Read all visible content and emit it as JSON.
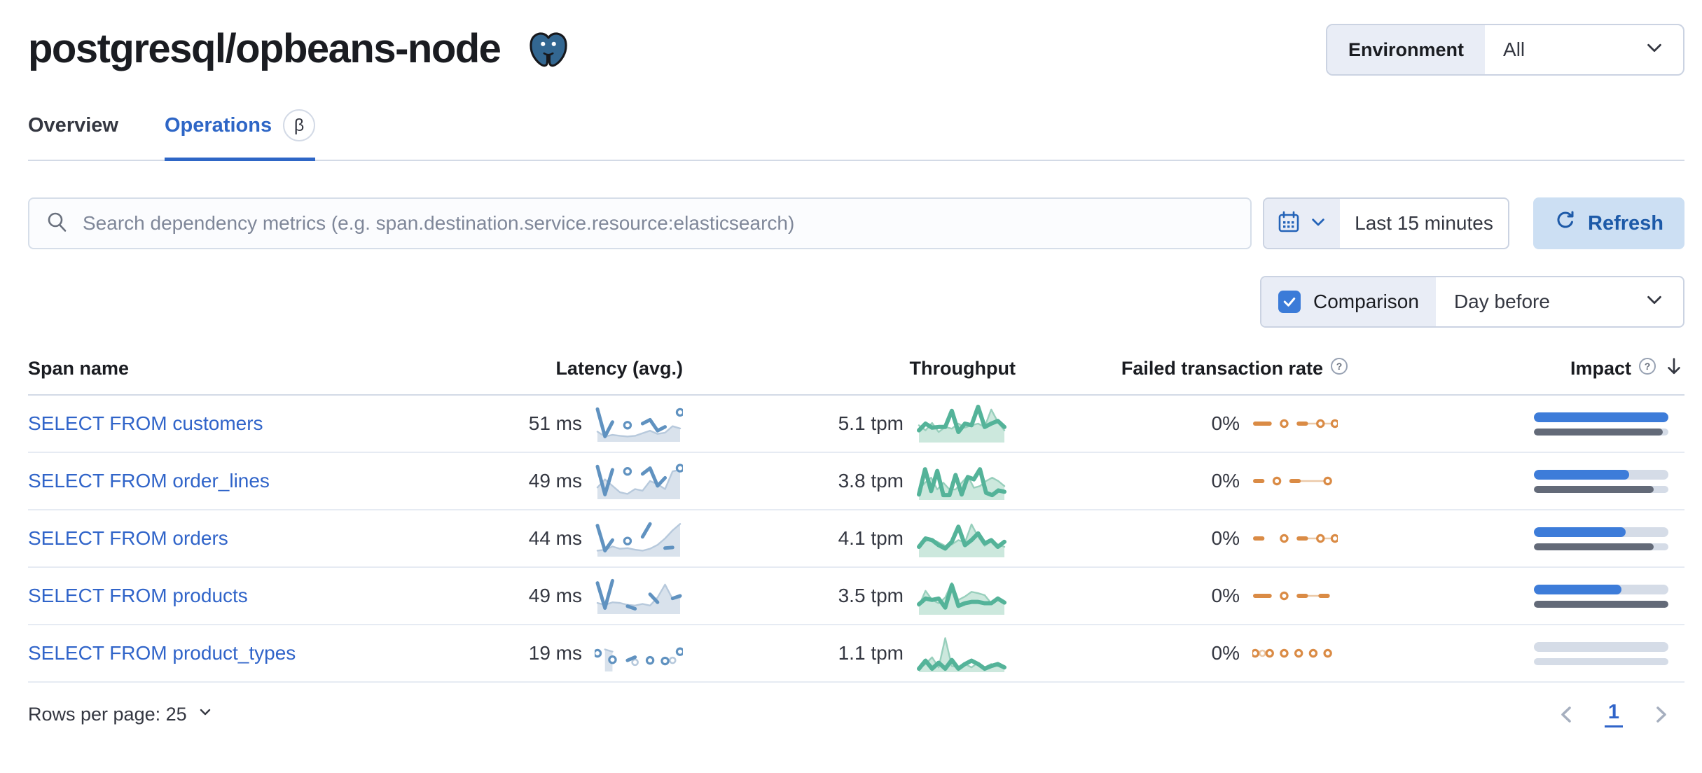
{
  "page": {
    "title": "postgresql/opbeans-node"
  },
  "environment": {
    "label": "Environment",
    "value": "All"
  },
  "tabs": [
    {
      "label": "Overview",
      "selected": false
    },
    {
      "label": "Operations",
      "selected": true,
      "badge": "β"
    }
  ],
  "search": {
    "placeholder": "Search dependency metrics (e.g. span.destination.service.resource:elasticsearch)"
  },
  "time_picker": {
    "value": "Last 15 minutes",
    "refresh_label": "Refresh"
  },
  "comparison": {
    "label": "Comparison",
    "checked": true,
    "value": "Day before"
  },
  "table": {
    "columns": [
      "Span name",
      "Latency (avg.)",
      "Throughput",
      "Failed transaction rate",
      "Impact"
    ],
    "rows": [
      {
        "span_name": "SELECT FROM customers",
        "latency": "51 ms",
        "throughput": "5.1 tpm",
        "failed_rate": "0%",
        "impact_pct": 100,
        "impact_prev_pct": 96,
        "latency_spark": {
          "cur": [
            0.95,
            0.1,
            0.55,
            null,
            0.45,
            null,
            0.5,
            0.62,
            0.28,
            0.4,
            null,
            0.85
          ],
          "cmp": [
            0.25,
            0.1,
            0.15,
            0.12,
            0.1,
            0.12,
            0.2,
            0.28,
            0.18,
            0.22,
            0.42,
            0.35
          ]
        },
        "throughput_spark": {
          "cur": [
            0.3,
            0.5,
            0.38,
            0.4,
            0.4,
            0.88,
            0.25,
            0.5,
            0.45,
            1.0,
            0.4,
            0.5,
            0.58,
            0.4
          ],
          "cmp": [
            0.45,
            0.3,
            0.52,
            0.25,
            0.4,
            0.35,
            0.5,
            0.38,
            0.45,
            0.5,
            0.4,
            0.92,
            0.55,
            0.3
          ]
        },
        "failed_spark": {
          "cur": [
            0,
            0,
            0,
            null,
            0,
            null,
            0,
            0,
            null,
            0,
            null,
            0
          ],
          "cmp": [
            null,
            null,
            null,
            null,
            null,
            null,
            null,
            0,
            0,
            0,
            0,
            0
          ]
        }
      },
      {
        "span_name": "SELECT FROM order_lines",
        "latency": "49 ms",
        "throughput": "3.8 tpm",
        "failed_rate": "0%",
        "impact_pct": 71,
        "impact_prev_pct": 89,
        "latency_spark": {
          "cur": [
            0.95,
            0.08,
            0.85,
            null,
            0.8,
            null,
            0.72,
            0.9,
            0.35,
            0.6,
            null,
            0.9
          ],
          "cmp": [
            0.3,
            0.55,
            0.35,
            0.15,
            0.1,
            0.25,
            0.2,
            0.5,
            0.4,
            0.25,
            0.8,
            0.85
          ]
        },
        "throughput_spark": {
          "cur": [
            0.1,
            0.85,
            0.2,
            0.8,
            0.08,
            0.08,
            0.68,
            0.1,
            0.62,
            0.55,
            0.85,
            0.15,
            0.08,
            0.22,
            0.18
          ],
          "cmp": [
            0.25,
            0.45,
            0.6,
            0.25,
            0.45,
            0.25,
            0.25,
            0.45,
            0.65,
            0.3,
            0.35,
            0.5,
            0.6,
            0.5,
            0.35
          ]
        },
        "failed_spark": {
          "cur": [
            0,
            0,
            null,
            0,
            null,
            0,
            0,
            null,
            null,
            null,
            0,
            null
          ],
          "cmp": [
            null,
            null,
            null,
            null,
            null,
            null,
            0,
            0,
            0,
            0,
            0,
            null
          ]
        }
      },
      {
        "span_name": "SELECT FROM orders",
        "latency": "44 ms",
        "throughput": "4.1 tpm",
        "failed_rate": "0%",
        "impact_pct": 68,
        "impact_prev_pct": 89,
        "latency_spark": {
          "cur": [
            0.9,
            0.12,
            0.45,
            null,
            0.42,
            null,
            0.55,
            0.95,
            null,
            0.2,
            0.22,
            null
          ],
          "cmp": [
            0.12,
            0.15,
            0.25,
            0.18,
            0.2,
            0.15,
            0.12,
            0.18,
            0.3,
            0.5,
            0.75,
            0.95
          ]
        },
        "throughput_spark": {
          "cur": [
            0.25,
            0.5,
            0.45,
            0.3,
            0.2,
            0.4,
            0.85,
            0.3,
            0.45,
            0.65,
            0.35,
            0.45,
            0.25,
            0.4
          ],
          "cmp": [
            0.3,
            0.42,
            0.48,
            0.38,
            0.28,
            0.32,
            0.45,
            0.38,
            0.92,
            0.55,
            0.28,
            0.42,
            0.32,
            0.25
          ]
        },
        "failed_spark": {
          "cur": [
            0,
            0,
            null,
            null,
            0,
            null,
            0,
            0,
            null,
            0,
            null,
            0
          ],
          "cmp": [
            null,
            null,
            null,
            null,
            null,
            null,
            null,
            0,
            0,
            0,
            0,
            0
          ]
        }
      },
      {
        "span_name": "SELECT FROM products",
        "latency": "49 ms",
        "throughput": "3.5 tpm",
        "failed_rate": "0%",
        "impact_pct": 65,
        "impact_prev_pct": 100,
        "latency_spark": {
          "cur": [
            0.9,
            0.12,
            0.97,
            null,
            0.18,
            0.1,
            null,
            0.55,
            0.3,
            null,
            0.42,
            0.5
          ],
          "cmp": [
            0.28,
            0.22,
            0.3,
            0.28,
            0.22,
            0.2,
            0.25,
            0.2,
            0.45,
            0.85,
            0.4,
            0.45
          ]
        },
        "throughput_spark": {
          "cur": [
            0.25,
            0.42,
            0.38,
            0.42,
            0.15,
            0.82,
            0.2,
            0.28,
            0.32,
            0.32,
            0.28,
            0.28,
            0.42,
            0.3
          ],
          "cmp": [
            0.2,
            0.65,
            0.38,
            0.28,
            0.45,
            0.88,
            0.38,
            0.48,
            0.62,
            0.58,
            0.52,
            0.28,
            0.42,
            0.28
          ]
        },
        "failed_spark": {
          "cur": [
            0,
            0,
            0,
            null,
            0,
            null,
            0,
            0,
            null,
            0,
            0,
            null
          ],
          "cmp": [
            null,
            null,
            null,
            null,
            null,
            null,
            0,
            0,
            0,
            0,
            0,
            null
          ]
        }
      },
      {
        "span_name": "SELECT FROM product_types",
        "latency": "19 ms",
        "throughput": "1.1 tpm",
        "failed_rate": "0%",
        "impact_pct": 0,
        "impact_prev_pct": 0,
        "latency_spark": {
          "cur": [
            0.5,
            null,
            0.3,
            null,
            0.28,
            0.38,
            null,
            0.28,
            null,
            0.26,
            null,
            0.55
          ],
          "cmp": [
            null,
            0.62,
            0.55,
            null,
            null,
            0.22,
            null,
            null,
            null,
            null,
            0.28,
            null
          ]
        },
        "throughput_spark": {
          "cur": [
            0.04,
            0.28,
            0.04,
            0.22,
            0.04,
            0.3,
            0.04,
            0.18,
            0.28,
            0.18,
            0.04,
            0.12,
            0.18,
            0.08
          ],
          "cmp": [
            0.04,
            0.18,
            0.38,
            0.08,
            0.95,
            0.12,
            0.08,
            0.18,
            0.08,
            0.22,
            0.08,
            0.18,
            0.12,
            0.04
          ]
        },
        "failed_spark": {
          "cur": [
            0,
            null,
            0,
            null,
            0,
            null,
            0,
            null,
            0,
            null,
            0,
            null
          ],
          "cmp": [
            null,
            0,
            null,
            null,
            null,
            null,
            null,
            null,
            null,
            null,
            null,
            null
          ]
        }
      }
    ]
  },
  "pagination": {
    "rows_per_page_label": "Rows per page: 25",
    "current_page": "1"
  },
  "colors": {
    "accent_blue": "#2E66C6",
    "link_blue": "#3064C9",
    "vis_blue": "#6092C0",
    "vis_blue_light": "#B7C9DC",
    "vis_blue_fill": "#D9E2EC",
    "vis_green": "#54B399",
    "vis_green_light": "#98CfBC",
    "vis_green_fill": "#CCE8DD",
    "vis_orange": "#DA8B45",
    "vis_orange_light": "#EBC9A8",
    "impact_blue": "#3D7CD9",
    "impact_gray": "#636A78",
    "track_gray": "#D5DCE7"
  }
}
